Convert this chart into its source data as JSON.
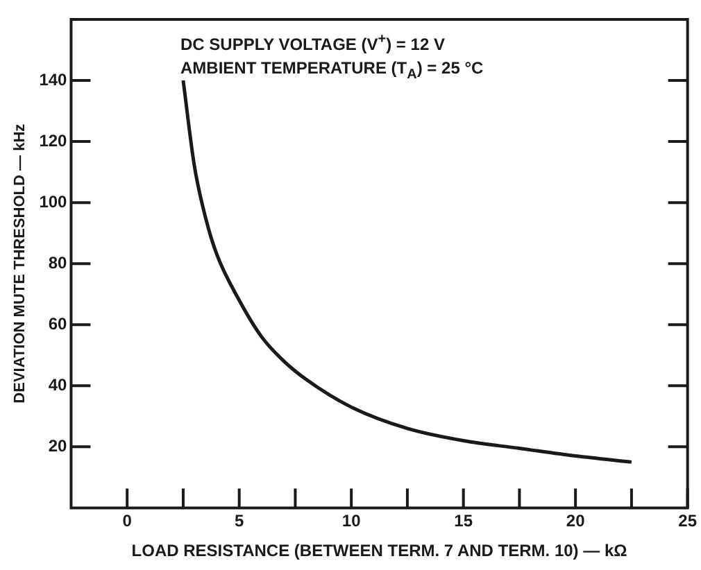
{
  "chart_data": {
    "type": "line",
    "xlabel": "LOAD RESISTANCE (BETWEEN TERM. 7 AND TERM. 10) — kΩ",
    "ylabel": "DEVIATION MUTE THRESHOLD — kHz",
    "annotations": [
      "DC SUPPLY VOLTAGE (V$^{+}$) = 12 V",
      "AMBIENT TEMPERATURE (T$_{A}$) = 25 °C"
    ],
    "series": [
      {
        "color": "#1a1a1a",
        "x": [
          2.5,
          3,
          3.5,
          4,
          5,
          6,
          7,
          8,
          10,
          12.5,
          15,
          17.5,
          20,
          22.5
        ],
        "values": [
          140,
          112,
          95,
          83,
          68,
          56,
          48,
          42,
          33,
          26,
          22,
          19.5,
          17,
          15
        ]
      }
    ],
    "xlim": [
      -2.5,
      25
    ],
    "xticks": [
      0,
      {
        "value": 2.5,
        "label": null
      },
      5,
      {
        "value": 7.5,
        "label": null
      },
      10,
      {
        "value": 12.5,
        "label": null
      },
      15,
      {
        "value": 17.5,
        "label": null
      },
      20,
      {
        "value": 22.5,
        "label": null
      },
      25
    ],
    "ylim": [
      0,
      160
    ],
    "yticks": [
      20,
      40,
      60,
      80,
      100,
      120,
      140
    ],
    "grid": false,
    "legend": false,
    "marker": "none",
    "line_style": "solid"
  }
}
